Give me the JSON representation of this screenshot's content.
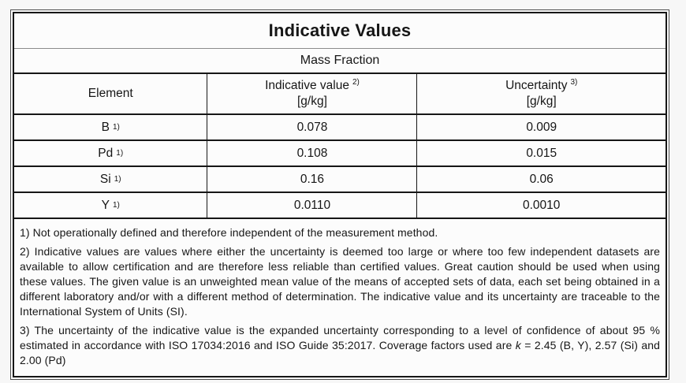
{
  "table": {
    "title": "Indicative Values",
    "subtitle": "Mass Fraction",
    "columns": {
      "element": "Element",
      "indicative": {
        "label": "Indicative value",
        "sup": "2)",
        "unit": "[g/kg]"
      },
      "uncertainty": {
        "label": "Uncertainty",
        "sup": "3)",
        "unit": "[g/kg]"
      }
    },
    "rows": [
      {
        "symbol": "B",
        "sup": "1)",
        "value": "0.078",
        "uncertainty": "0.009"
      },
      {
        "symbol": "Pd",
        "sup": "1)",
        "value": "0.108",
        "uncertainty": "0.015"
      },
      {
        "symbol": "Si",
        "sup": "1)",
        "value": "0.16",
        "uncertainty": "0.06"
      },
      {
        "symbol": "Y",
        "sup": "1)",
        "value": "0.0110",
        "uncertainty": "0.0010"
      }
    ]
  },
  "footnotes": {
    "note1": "1) Not operationally defined and therefore independent of the measurement method.",
    "note2": "2) Indicative values are values where either the uncertainty is deemed too large or where too few independent datasets are available to allow certification and are therefore less reliable than certified values. Great caution should be used when using these values. The given value is an unweighted mean value of the means of accepted sets of data, each set being obtained in a different laboratory and/or with a different method of determination. The indicative value and its uncertainty are traceable to the International System of Units (SI).",
    "note3_part1": "3) The uncertainty of the indicative value is the expanded uncertainty corresponding to a level of confidence of about 95 % estimated in accordance with ISO 17034:2016 and ISO Guide 35:2017. Coverage factors used are ",
    "note3_k": "k",
    "note3_part2": " = 2.45 (B, Y), 2.57 (Si) and 2.00 (Pd)"
  },
  "colors": {
    "border": "#161616",
    "outer_border": "#4c4c4c",
    "page_background": "#f7f7f7",
    "cell_background": "#fcfcfc",
    "text": "#161616"
  }
}
